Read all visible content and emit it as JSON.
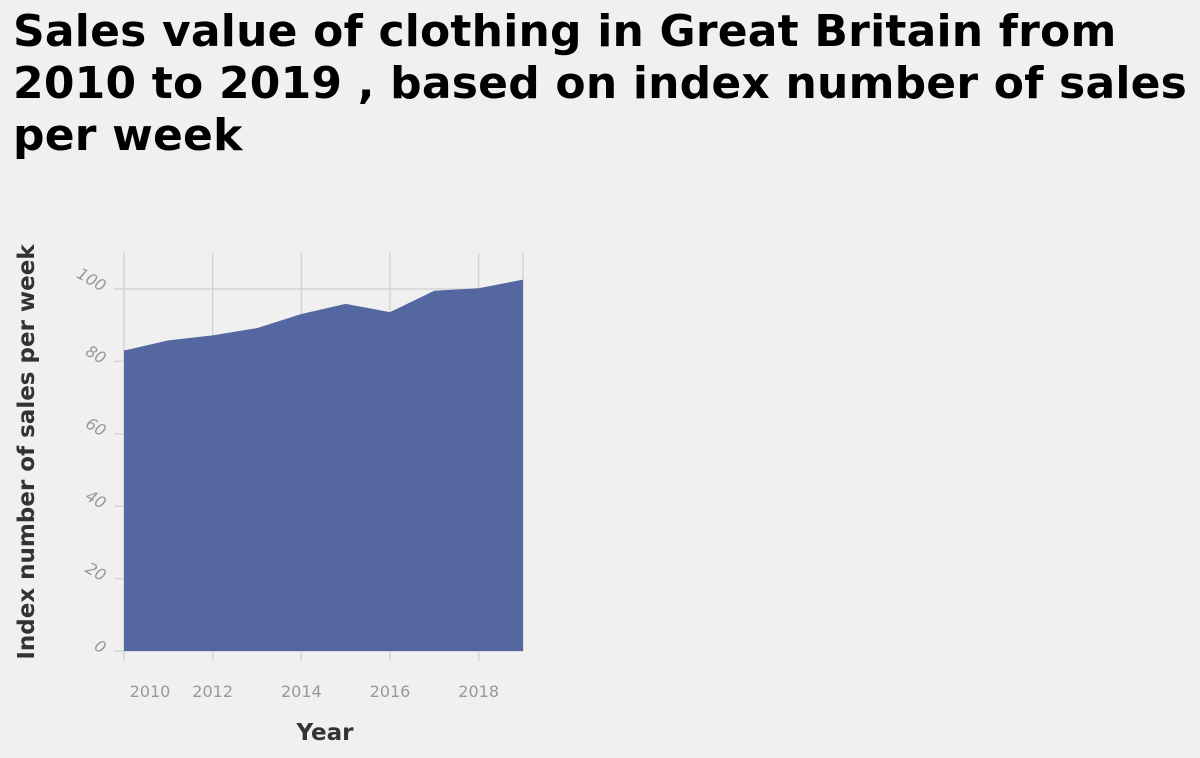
{
  "chart_data": {
    "type": "area",
    "title": "Sales value of clothing in Great Britain from 2010 to 2019 , based on index number of sales per week",
    "xlabel": "Year",
    "ylabel": "Index number of sales per week",
    "x": [
      2010,
      2011,
      2012,
      2013,
      2014,
      2015,
      2016,
      2017,
      2018,
      2019
    ],
    "series": [
      {
        "values": [
          83.0,
          85.8,
          87.2,
          89.2,
          93.1,
          95.9,
          93.6,
          99.5,
          100.2,
          102.6
        ]
      }
    ],
    "xlim": [
      2010,
      2019
    ],
    "ylim": [
      0,
      100
    ],
    "x_ticks": [
      "2010",
      "2012",
      "2014",
      "2016",
      "2018"
    ],
    "y_ticks": [
      "0",
      "20",
      "40",
      "60",
      "80",
      "100"
    ],
    "grid": true,
    "colors": {
      "area": "#5567a0",
      "grid": "#d4d4d4",
      "tick_text": "#999999",
      "axis_label": "#333333"
    }
  }
}
